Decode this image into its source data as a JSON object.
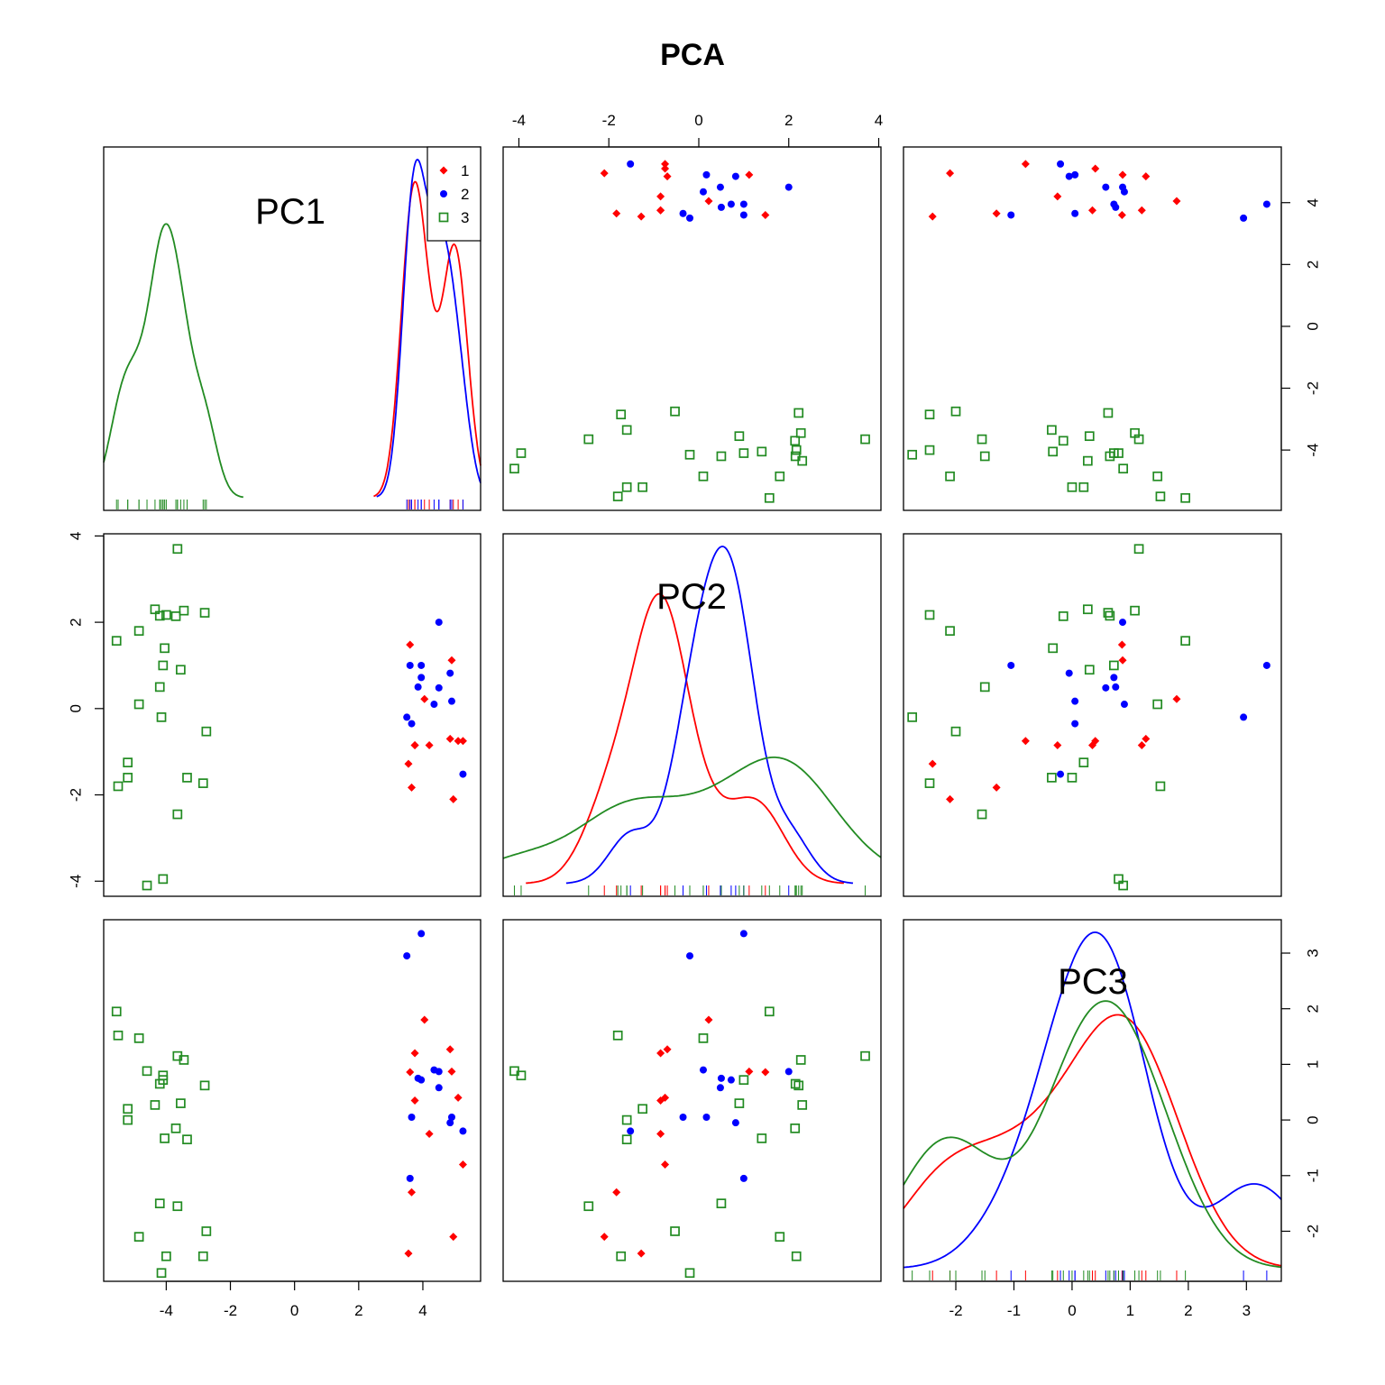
{
  "chart_data": {
    "type": "scatter",
    "title": "PCA",
    "variables": [
      "PC1",
      "PC2",
      "PC3"
    ],
    "legend": {
      "position": "top-right of PC1 panel",
      "entries": [
        "1",
        "2",
        "3"
      ]
    },
    "colors": {
      "1": "#ff0000",
      "2": "#0000ff",
      "3": "#228b22"
    },
    "markers": {
      "1": "diamond",
      "2": "circle",
      "3": "open-square"
    },
    "axes": {
      "PC1": {
        "range": [
          -5.95,
          5.8
        ],
        "ticks": [
          -4,
          -2,
          0,
          2,
          4
        ],
        "tick_labels": [
          "-4",
          "-2",
          "0",
          "2",
          "4"
        ]
      },
      "PC2": {
        "range": [
          -4.35,
          4.05
        ],
        "ticks": [
          -4,
          -2,
          0,
          2,
          4
        ],
        "tick_labels": [
          "-4",
          "-2",
          "0",
          "2",
          "4"
        ]
      },
      "PC3": {
        "range": [
          -2.9,
          3.6
        ],
        "ticks": [
          -2,
          -1,
          0,
          1,
          2,
          3
        ],
        "tick_labels": [
          "-2",
          "-1",
          "0",
          "1",
          "2",
          "3"
        ]
      }
    },
    "groups": [
      {
        "name": "1",
        "PC1": [
          3.6,
          3.75,
          3.75,
          4.05,
          4.2,
          4.9,
          5.1,
          4.85,
          3.55,
          3.65,
          4.95,
          5.25
        ],
        "PC2": [
          1.48,
          -0.85,
          -0.85,
          0.22,
          -0.85,
          1.12,
          -0.75,
          -0.7,
          -1.28,
          -1.83,
          -2.1,
          -0.75
        ],
        "PC3": [
          0.86,
          1.2,
          0.35,
          1.8,
          -0.25,
          0.87,
          0.4,
          1.27,
          -2.4,
          -1.3,
          -2.1,
          -0.8
        ]
      },
      {
        "name": "2",
        "PC1": [
          3.5,
          3.65,
          3.95,
          3.95,
          4.5,
          4.5,
          4.85,
          4.9,
          5.25,
          3.6,
          3.85,
          4.35
        ],
        "PC2": [
          -0.2,
          -0.35,
          1.0,
          0.72,
          2.0,
          0.48,
          0.82,
          0.17,
          -1.52,
          1.0,
          0.5,
          0.1
        ],
        "PC3": [
          2.95,
          0.05,
          3.35,
          0.72,
          0.87,
          0.58,
          -0.05,
          0.05,
          -0.2,
          -1.05,
          0.75,
          0.9
        ]
      },
      {
        "name": "3",
        "PC1": [
          -5.55,
          -5.5,
          -5.2,
          -5.2,
          -4.85,
          -4.85,
          -4.6,
          -4.35,
          -4.2,
          -4.2,
          -4.15,
          -4.1,
          -4.05,
          -4.0,
          -3.7,
          -3.65,
          -3.65,
          -3.45,
          -3.35,
          -2.85,
          -2.8,
          -2.75,
          -4.1,
          -3.55
        ],
        "PC2": [
          1.57,
          -1.8,
          -1.25,
          -1.6,
          1.8,
          0.1,
          -4.1,
          2.3,
          0.5,
          2.15,
          -0.2,
          -3.95,
          1.4,
          2.17,
          2.14,
          3.7,
          -2.45,
          2.27,
          -1.6,
          -1.73,
          2.22,
          -0.53,
          1.0,
          0.9
        ],
        "PC3": [
          1.95,
          1.52,
          0.2,
          0.0,
          -2.1,
          1.47,
          0.88,
          0.27,
          -1.5,
          0.65,
          -2.75,
          0.8,
          -0.33,
          -2.45,
          -0.15,
          1.15,
          -1.55,
          1.08,
          -0.35,
          -2.45,
          0.62,
          -2.0,
          0.72,
          0.3
        ]
      }
    ]
  }
}
